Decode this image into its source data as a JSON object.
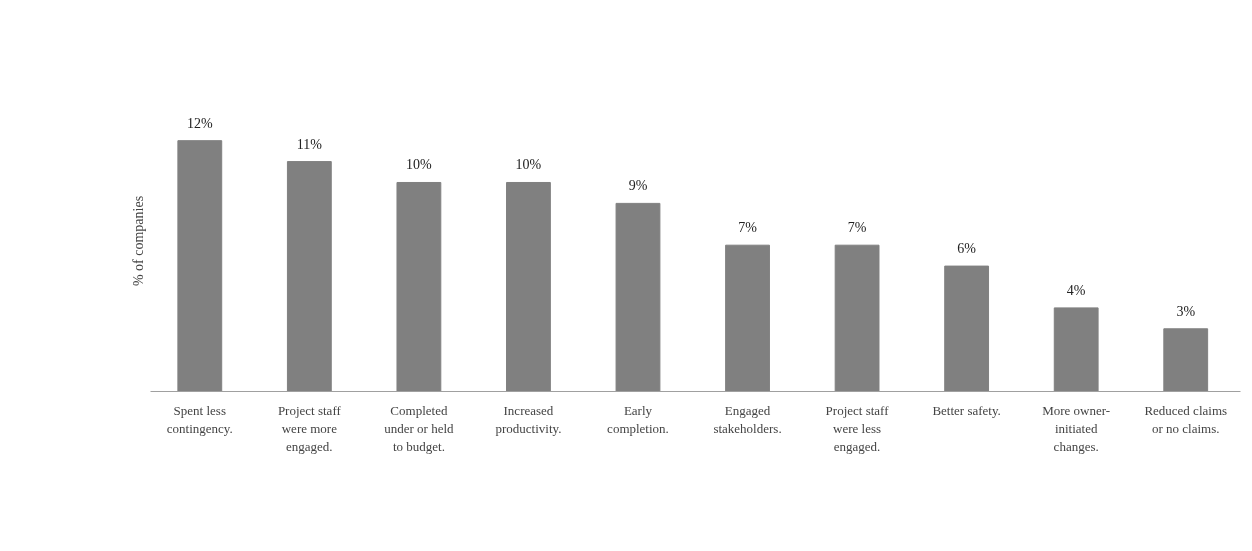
{
  "chart_data": {
    "type": "bar",
    "ylabel": "% of companies",
    "categories": [
      "Spent less contingency.",
      "Project staff were more engaged.",
      "Completed under or held to budget.",
      "Increased productivity.",
      "Early completion.",
      "Engaged stakeholders.",
      "Project staff were less engaged.",
      "Better safety.",
      "More owner-initiated changes.",
      "Reduced claims or no claims."
    ],
    "values": [
      12,
      11,
      10,
      10,
      9,
      7,
      7,
      6,
      4,
      3
    ],
    "value_labels": [
      "12%",
      "11%",
      "10%",
      "10%",
      "9%",
      "7%",
      "7%",
      "6%",
      "4%",
      "3%"
    ],
    "color": "#808080",
    "grid": false
  }
}
